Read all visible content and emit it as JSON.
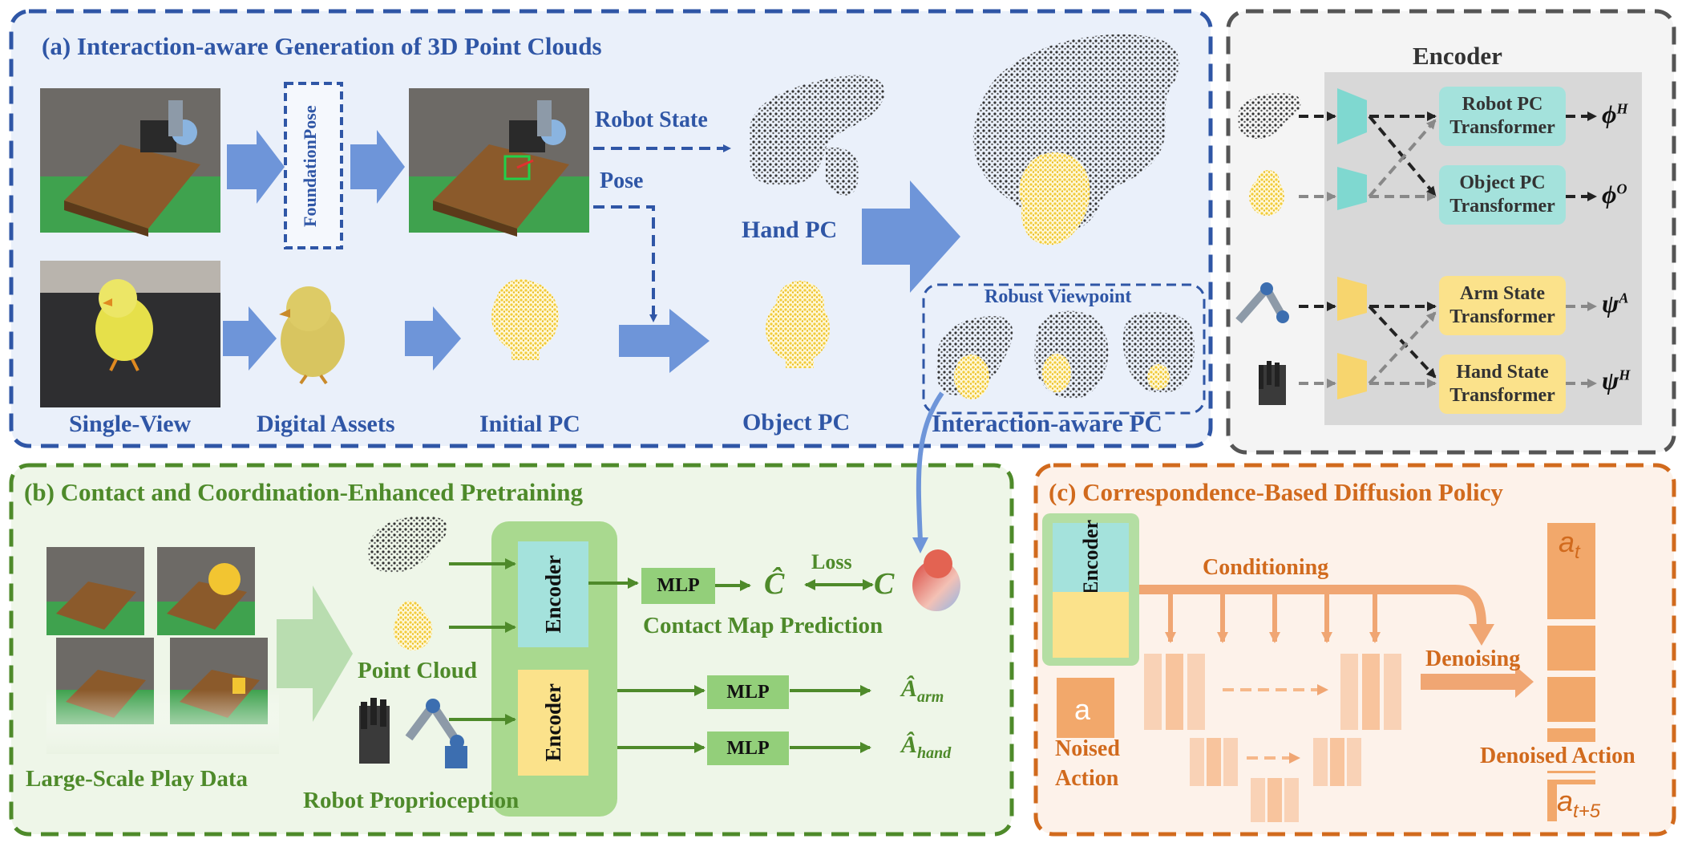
{
  "colors": {
    "blue": "#2f56a6",
    "green": "#4e8a2a",
    "orange": "#d16a1d",
    "cyan": "#a4e2dc",
    "yellow": "#fbe28b"
  },
  "panel_a": {
    "title": "(a) Interaction-aware Generation of 3D Point Clouds",
    "foundation_pose": "FoundationPose",
    "robot_state": "Robot State",
    "pose": "Pose",
    "hand_pc": "Hand PC",
    "single_view": "Single-View",
    "digital_assets": "Digital Assets",
    "initial_pc": "Initial PC",
    "object_pc": "Object PC",
    "robust_viewpoint": "Robust Viewpoint",
    "interaction_pc": "Interaction-aware PC"
  },
  "encoder_panel": {
    "title": "Encoder",
    "robot_pc_transformer": "Robot PC Transformer",
    "object_pc_transformer": "Object PC Transformer",
    "arm_state_transformer": "Arm State Transformer",
    "hand_state_transformer": "Hand State Transformer",
    "out_phi_h_base": "ϕ",
    "out_phi_h_sup": "H",
    "out_phi_o_base": "ϕ",
    "out_phi_o_sup": "O",
    "out_psi_a_base": "ψ",
    "out_psi_a_sup": "A",
    "out_psi_h_base": "ψ",
    "out_psi_h_sup": "H"
  },
  "panel_b": {
    "title": "(b) Contact and Coordination-Enhanced Pretraining",
    "play_data": "Large-Scale Play Data",
    "point_cloud": "Point Cloud",
    "proprioception": "Robot Proprioception",
    "encoder_top": "Encoder",
    "encoder_bottom": "Encoder",
    "mlp_1": "MLP",
    "mlp_2": "MLP",
    "mlp_3": "MLP",
    "c_hat": "Ĉ",
    "c": "C",
    "loss": "Loss",
    "contact_map": "Contact Map Prediction",
    "a_arm_base": "Â",
    "a_arm_sub": "arm",
    "a_hand_base": "Â",
    "a_hand_sub": "hand"
  },
  "panel_c": {
    "title": "(c) Correspondence-Based Diffusion Policy",
    "encoder": "Encoder",
    "conditioning": "Conditioning",
    "denoising": "Denoising",
    "a_token": "a",
    "noised_action_1": "Noised",
    "noised_action_2": "Action",
    "denoised_action": "Denoised Action",
    "a_t_base": "a",
    "a_t_sub": "t",
    "a_t5_base": "a",
    "a_t5_sub": "t+5"
  }
}
